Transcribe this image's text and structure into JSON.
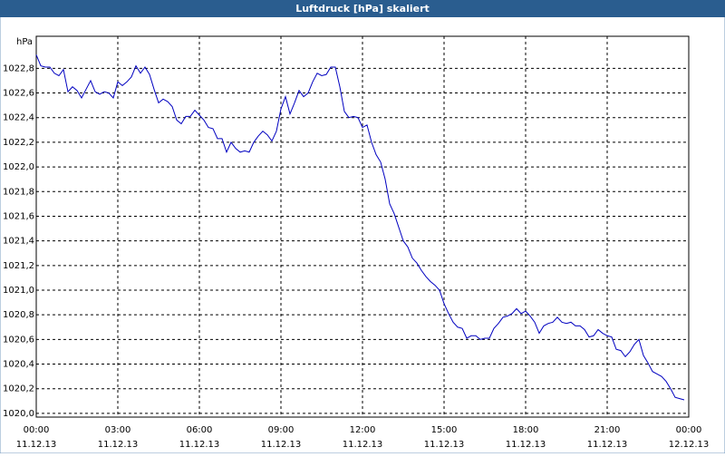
{
  "chart_data": {
    "type": "line",
    "title": "Luftdruck [hPa] skaliert",
    "y_unit": "hPa",
    "x": [
      0,
      10,
      20,
      30,
      40,
      50,
      60,
      70,
      80,
      90,
      100,
      110,
      120,
      130,
      140,
      150,
      160,
      170,
      180,
      190,
      200,
      210,
      220,
      230,
      240,
      250,
      260,
      270,
      280,
      290,
      300,
      310,
      320,
      330,
      340,
      350,
      360,
      370,
      380,
      390,
      400,
      410,
      420,
      430,
      440,
      450,
      460,
      470,
      480,
      490,
      500,
      510,
      520,
      530,
      540,
      550,
      560,
      570,
      580,
      590,
      600,
      610,
      620,
      630,
      640,
      650,
      660,
      670,
      680,
      690,
      700,
      710,
      720,
      730,
      740,
      750,
      760,
      770,
      780,
      790,
      800,
      810,
      820,
      830,
      840,
      850,
      860,
      870,
      880,
      890,
      900,
      910,
      920,
      930,
      940,
      950,
      960,
      970,
      980,
      990,
      1000,
      1010,
      1020,
      1030,
      1040,
      1050,
      1060,
      1070,
      1080,
      1090,
      1100,
      1110,
      1120,
      1130,
      1140,
      1150,
      1160,
      1170,
      1180,
      1190,
      1200,
      1210,
      1220,
      1230,
      1240,
      1250,
      1260,
      1270,
      1280,
      1290,
      1300,
      1310,
      1320,
      1330,
      1340,
      1350,
      1360,
      1370,
      1380,
      1390,
      1400,
      1410,
      1420,
      1430
    ],
    "series": [
      {
        "color": "#0000c0",
        "values": [
          1022.91,
          1022.82,
          1022.81,
          1022.81,
          1022.76,
          1022.74,
          1022.79,
          1022.61,
          1022.65,
          1022.62,
          1022.56,
          1022.63,
          1022.7,
          1022.61,
          1022.59,
          1022.61,
          1022.6,
          1022.56,
          1022.69,
          1022.66,
          1022.69,
          1022.73,
          1022.82,
          1022.76,
          1022.81,
          1022.75,
          1022.63,
          1022.52,
          1022.55,
          1022.53,
          1022.49,
          1022.38,
          1022.35,
          1022.41,
          1022.41,
          1022.46,
          1022.42,
          1022.38,
          1022.32,
          1022.31,
          1022.23,
          1022.23,
          1022.12,
          1022.2,
          1022.15,
          1022.12,
          1022.13,
          1022.12,
          1022.2,
          1022.25,
          1022.29,
          1022.26,
          1022.21,
          1022.29,
          1022.47,
          1022.57,
          1022.43,
          1022.52,
          1022.62,
          1022.57,
          1022.6,
          1022.69,
          1022.76,
          1022.74,
          1022.75,
          1022.81,
          1022.81,
          1022.65,
          1022.45,
          1022.4,
          1022.41,
          1022.4,
          1022.32,
          1022.34,
          1022.2,
          1022.1,
          1022.04,
          1021.9,
          1021.7,
          1021.62,
          1021.51,
          1021.4,
          1021.35,
          1021.26,
          1021.22,
          1021.16,
          1021.11,
          1021.07,
          1021.04,
          1021.0,
          1020.89,
          1020.81,
          1020.74,
          1020.7,
          1020.69,
          1020.61,
          1020.63,
          1020.63,
          1020.6,
          1020.61,
          1020.61,
          1020.69,
          1020.73,
          1020.78,
          1020.79,
          1020.81,
          1020.85,
          1020.81,
          1020.83,
          1020.79,
          1020.74,
          1020.65,
          1020.71,
          1020.73,
          1020.74,
          1020.78,
          1020.74,
          1020.73,
          1020.74,
          1020.71,
          1020.71,
          1020.68,
          1020.62,
          1020.63,
          1020.68,
          1020.65,
          1020.63,
          1020.62,
          1020.52,
          1020.51,
          1020.46,
          1020.5,
          1020.56,
          1020.6,
          1020.47,
          1020.41,
          1020.34,
          1020.32,
          1020.3,
          1020.26,
          1020.2,
          1020.13,
          1020.12,
          1020.11
        ]
      }
    ],
    "xlim": [
      0,
      1440
    ],
    "xticks": [
      {
        "value": 0,
        "label": "00:00",
        "date": "11.12.13"
      },
      {
        "value": 180,
        "label": "03:00",
        "date": "11.12.13"
      },
      {
        "value": 360,
        "label": "06:00",
        "date": "11.12.13"
      },
      {
        "value": 540,
        "label": "09:00",
        "date": "11.12.13"
      },
      {
        "value": 720,
        "label": "12:00",
        "date": "11.12.13"
      },
      {
        "value": 900,
        "label": "15:00",
        "date": "11.12.13"
      },
      {
        "value": 1080,
        "label": "18:00",
        "date": "11.12.13"
      },
      {
        "value": 1260,
        "label": "21:00",
        "date": "11.12.13"
      },
      {
        "value": 1440,
        "label": "00:00",
        "date": "12.12.13"
      }
    ],
    "ylim": [
      1019.97,
      1023.06
    ],
    "yticks": [
      {
        "value": 1020.0,
        "label": "1020,0"
      },
      {
        "value": 1020.2,
        "label": "1020,2"
      },
      {
        "value": 1020.4,
        "label": "1020,4"
      },
      {
        "value": 1020.6,
        "label": "1020,6"
      },
      {
        "value": 1020.8,
        "label": "1020,8"
      },
      {
        "value": 1021.0,
        "label": "1021,0"
      },
      {
        "value": 1021.2,
        "label": "1021,2"
      },
      {
        "value": 1021.4,
        "label": "1021,4"
      },
      {
        "value": 1021.6,
        "label": "1021,6"
      },
      {
        "value": 1021.8,
        "label": "1021,8"
      },
      {
        "value": 1022.0,
        "label": "1022,0"
      },
      {
        "value": 1022.2,
        "label": "1022,2"
      },
      {
        "value": 1022.4,
        "label": "1022,4"
      },
      {
        "value": 1022.6,
        "label": "1022,6"
      },
      {
        "value": 1022.8,
        "label": "1022,8"
      }
    ],
    "grid": true
  }
}
